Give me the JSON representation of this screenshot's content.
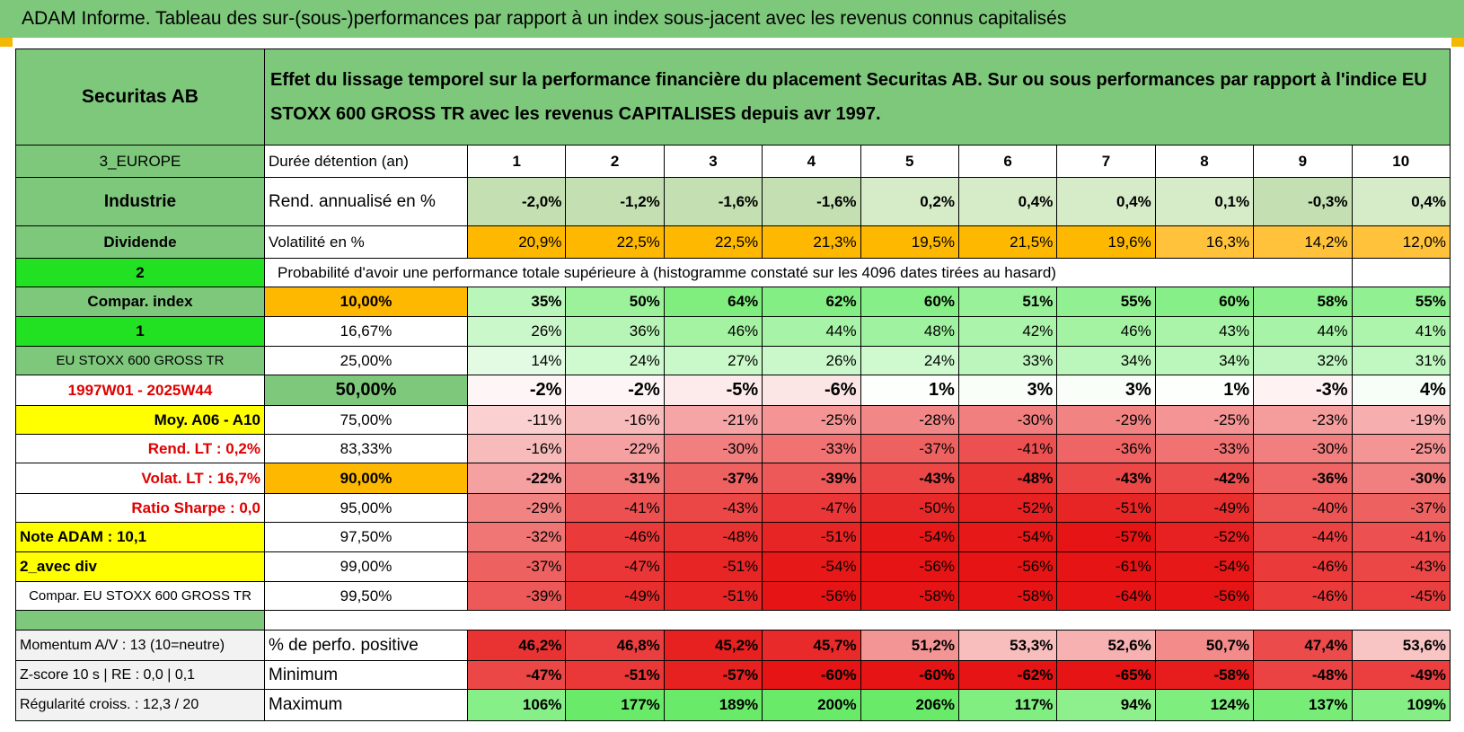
{
  "header": {
    "title": "ADAM Informe. Tableau des sur-(sous-)performances par rapport à un index sous-jacent avec les revenus connus capitalisés"
  },
  "summary": {
    "name": "Securitas AB",
    "description": "Effet du lissage temporel sur la performance financière du placement Securitas AB. Sur ou sous performances par rapport à l'indice EU STOXX 600 GROSS TR avec les revenus CAPITALISES depuis avr 1997."
  },
  "holding": {
    "region": "3_EUROPE",
    "label": "Durée détention (an)",
    "years": [
      "1",
      "2",
      "3",
      "4",
      "5",
      "6",
      "7",
      "8",
      "9",
      "10"
    ]
  },
  "returns": {
    "sector": "Industrie",
    "label": "Rend. annualisé en %",
    "values": [
      "-2,0%",
      "-1,2%",
      "-1,6%",
      "-1,6%",
      "0,2%",
      "0,4%",
      "0,4%",
      "0,1%",
      "-0,3%",
      "0,4%"
    ]
  },
  "volatility": {
    "kind": "Dividende",
    "label": "Volatilité en %",
    "values": [
      "20,9%",
      "22,5%",
      "22,5%",
      "21,3%",
      "19,5%",
      "21,5%",
      "19,6%",
      "16,3%",
      "14,2%",
      "12,0%"
    ]
  },
  "probability": {
    "marker": "2",
    "title": "Probabilité d'avoir une performance totale supérieure à (histogramme constaté sur les 4096 dates tirées au hasard)",
    "rows": [
      {
        "side": "Compar. index",
        "threshold": "10,00%",
        "values": [
          "35%",
          "50%",
          "64%",
          "62%",
          "60%",
          "51%",
          "55%",
          "60%",
          "58%",
          "55%"
        ]
      },
      {
        "side": "1",
        "threshold": "16,67%",
        "values": [
          "26%",
          "36%",
          "46%",
          "44%",
          "48%",
          "42%",
          "46%",
          "43%",
          "44%",
          "41%"
        ]
      },
      {
        "side": "EU STOXX 600 GROSS TR",
        "threshold": "25,00%",
        "values": [
          "14%",
          "24%",
          "27%",
          "26%",
          "24%",
          "33%",
          "34%",
          "34%",
          "32%",
          "31%"
        ]
      },
      {
        "side": "1997W01 - 2025W44",
        "threshold": "50,00%",
        "values": [
          "-2%",
          "-2%",
          "-5%",
          "-6%",
          "1%",
          "3%",
          "3%",
          "1%",
          "-3%",
          "4%"
        ]
      },
      {
        "side": "Moy. A06 - A10",
        "threshold": "75,00%",
        "values": [
          "-11%",
          "-16%",
          "-21%",
          "-25%",
          "-28%",
          "-30%",
          "-29%",
          "-25%",
          "-23%",
          "-19%"
        ]
      },
      {
        "side": "Rend. LT :   0,2%",
        "threshold": "83,33%",
        "values": [
          "-16%",
          "-22%",
          "-30%",
          "-33%",
          "-37%",
          "-41%",
          "-36%",
          "-33%",
          "-30%",
          "-25%"
        ]
      },
      {
        "side": "Volat. LT :    16,7%",
        "threshold": "90,00%",
        "values": [
          "-22%",
          "-31%",
          "-37%",
          "-39%",
          "-43%",
          "-48%",
          "-43%",
          "-42%",
          "-36%",
          "-30%"
        ]
      },
      {
        "side": "Ratio Sharpe :    0,0",
        "threshold": "95,00%",
        "values": [
          "-29%",
          "-41%",
          "-43%",
          "-47%",
          "-50%",
          "-52%",
          "-51%",
          "-49%",
          "-40%",
          "-37%"
        ]
      },
      {
        "side": "Note ADAM : 10,1",
        "threshold": "97,50%",
        "values": [
          "-32%",
          "-46%",
          "-48%",
          "-51%",
          "-54%",
          "-54%",
          "-57%",
          "-52%",
          "-44%",
          "-41%"
        ]
      },
      {
        "side": "2_avec div",
        "threshold": "99,00%",
        "values": [
          "-37%",
          "-47%",
          "-51%",
          "-54%",
          "-56%",
          "-56%",
          "-61%",
          "-54%",
          "-46%",
          "-43%"
        ]
      },
      {
        "side": "Compar. EU STOXX 600 GROSS TR",
        "threshold": "99,50%",
        "values": [
          "-39%",
          "-49%",
          "-51%",
          "-56%",
          "-58%",
          "-58%",
          "-64%",
          "-56%",
          "-46%",
          "-45%"
        ]
      }
    ]
  },
  "stats": {
    "rows": [
      {
        "side": "Momentum A/V : 13 (10=neutre)",
        "label": "% de perfo. positive",
        "values": [
          "46,2%",
          "46,8%",
          "45,2%",
          "45,7%",
          "51,2%",
          "53,3%",
          "52,6%",
          "50,7%",
          "47,4%",
          "53,6%"
        ]
      },
      {
        "side": "Z-score 10 s | RE : 0,0 | 0,1",
        "label": "Minimum",
        "values": [
          "-47%",
          "-51%",
          "-57%",
          "-60%",
          "-60%",
          "-62%",
          "-65%",
          "-58%",
          "-48%",
          "-49%"
        ]
      },
      {
        "side": "Régularité croiss. : 12,3 / 20",
        "label": "Maximum",
        "values": [
          "106%",
          "177%",
          "189%",
          "200%",
          "206%",
          "117%",
          "94%",
          "124%",
          "137%",
          "109%"
        ]
      }
    ]
  }
}
